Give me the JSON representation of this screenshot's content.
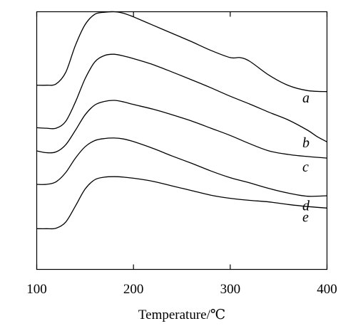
{
  "chart_data": {
    "type": "line",
    "xlabel": "Temperature/℃",
    "ylabel": "",
    "xlim": [
      100,
      400
    ],
    "xticks": [
      "100",
      "200",
      "300",
      "400"
    ],
    "grid": false,
    "legend": "none",
    "y_units": "arbitrary",
    "series": [
      {
        "name": "a",
        "x": [
          100,
          110,
          120,
          130,
          140,
          150,
          160,
          170,
          180,
          190,
          200,
          220,
          240,
          260,
          280,
          300,
          310,
          320,
          340,
          360,
          380,
          400
        ],
        "y": [
          71.5,
          71.5,
          72,
          76.5,
          87,
          95,
          99,
          99.8,
          100,
          99.4,
          98,
          94.8,
          91.6,
          88.4,
          85,
          82.2,
          82.2,
          80.8,
          75.4,
          71.4,
          69.4,
          69
        ]
      },
      {
        "name": "b",
        "x": [
          100,
          110,
          120,
          130,
          140,
          150,
          160,
          170,
          180,
          190,
          200,
          220,
          240,
          260,
          280,
          300,
          320,
          340,
          360,
          380,
          390,
          400
        ],
        "y": [
          55,
          54.8,
          54.8,
          57.5,
          65,
          74,
          80.5,
          83,
          83.5,
          82.8,
          81.8,
          79.5,
          76.6,
          73.6,
          70.5,
          67.2,
          64.2,
          61,
          58,
          54,
          51.5,
          49.5
        ]
      },
      {
        "name": "c",
        "x": [
          100,
          110,
          120,
          130,
          140,
          150,
          160,
          170,
          180,
          190,
          200,
          220,
          240,
          260,
          280,
          300,
          320,
          340,
          360,
          380,
          400
        ],
        "y": [
          46,
          45.3,
          45.6,
          48.4,
          54,
          60,
          63.8,
          65.2,
          65.6,
          65,
          64,
          62.2,
          60,
          57.6,
          54.8,
          52,
          48.8,
          46,
          44.6,
          43.8,
          43.2
        ]
      },
      {
        "name": "d",
        "x": [
          100,
          110,
          120,
          130,
          140,
          150,
          160,
          170,
          180,
          190,
          200,
          220,
          240,
          260,
          280,
          300,
          320,
          340,
          360,
          380,
          400
        ],
        "y": [
          33,
          33,
          34,
          37.6,
          43.2,
          47.6,
          50,
          50.8,
          51,
          50.6,
          49.6,
          47,
          44,
          41.2,
          38.2,
          35.6,
          33.6,
          31.4,
          29.6,
          28.4,
          28.6
        ]
      },
      {
        "name": "e",
        "x": [
          100,
          110,
          120,
          130,
          140,
          150,
          160,
          170,
          180,
          190,
          200,
          220,
          240,
          260,
          280,
          300,
          320,
          340,
          360,
          380,
          400
        ],
        "y": [
          15.8,
          15.8,
          16,
          18.4,
          24.6,
          31.2,
          34.8,
          35.8,
          36,
          35.8,
          35.4,
          34.2,
          32.4,
          30.6,
          28.8,
          27.6,
          26.8,
          26.2,
          25.2,
          24.4,
          23.8
        ]
      }
    ]
  }
}
